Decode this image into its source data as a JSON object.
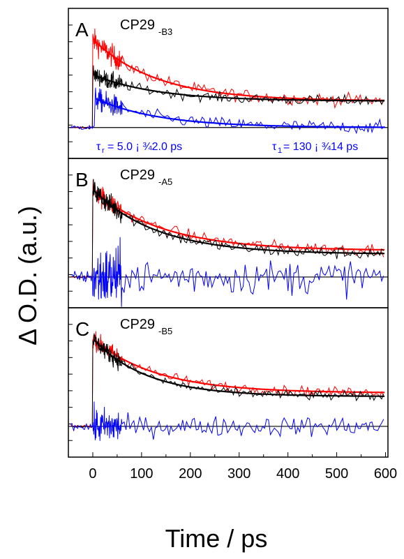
{
  "chart_data": {
    "type": "line",
    "xlabel": "Time / ps",
    "ylabel": "Δ O.D. (a.u.)",
    "xlim": [
      -50,
      605
    ],
    "xticks": [
      0,
      100,
      200,
      300,
      400,
      500,
      600
    ],
    "colors": {
      "red": "#ff0000",
      "black": "#000000",
      "blue": "#0000ff"
    },
    "panels": [
      {
        "letter": "A",
        "label_main": "CP29",
        "label_sub": "-B3",
        "annotations": [
          {
            "symbol": "τ",
            "sub": "r",
            "text": "= 5.0 ¡  ¾2.0 ps"
          },
          {
            "symbol": "τ",
            "sub": "1",
            "text": "= 130 ¡  ¾14 ps"
          }
        ],
        "ylim": [
          -0.35,
          1.35
        ],
        "series": [
          {
            "color": "red",
            "peak": 1.0,
            "t0": 0,
            "tau": 130,
            "offset": 0.3,
            "noise": 0.05,
            "start_noise": 0.01
          },
          {
            "color": "black",
            "peak": 0.6,
            "t0": 0,
            "tau": 130,
            "offset": 0.3,
            "noise": 0.04,
            "start_noise": 0.01
          },
          {
            "color": "blue",
            "peak": 0.33,
            "t0": 5,
            "tau": 130,
            "offset": 0.0,
            "noise": 0.05,
            "start_noise": 0.02
          }
        ]
      },
      {
        "letter": "B",
        "label_main": "CP29",
        "label_sub": "-A5",
        "annotations": [],
        "ylim": [
          -0.35,
          1.35
        ],
        "series": [
          {
            "color": "red",
            "peak": 1.0,
            "t0": 0,
            "tau": 140,
            "offset": 0.3,
            "noise": 0.05,
            "start_noise": 0.01
          },
          {
            "color": "black",
            "peak": 1.0,
            "t0": 0,
            "tau": 130,
            "offset": 0.26,
            "noise": 0.05,
            "start_noise": 0.01
          },
          {
            "color": "blue",
            "peak": 0.0,
            "t0": 0,
            "tau": 100,
            "offset": 0.0,
            "noise": 0.14,
            "start_noise": 0.05
          }
        ]
      },
      {
        "letter": "C",
        "label_main": "CP29",
        "label_sub": "-B5",
        "annotations": [],
        "ylim": [
          -0.35,
          1.35
        ],
        "series": [
          {
            "color": "red",
            "peak": 1.0,
            "t0": 0,
            "tau": 130,
            "offset": 0.38,
            "noise": 0.04,
            "start_noise": 0.01
          },
          {
            "color": "black",
            "peak": 1.0,
            "t0": 0,
            "tau": 110,
            "offset": 0.34,
            "noise": 0.04,
            "start_noise": 0.01
          },
          {
            "color": "blue",
            "peak": 0.0,
            "t0": 0,
            "tau": 100,
            "offset": 0.0,
            "noise": 0.08,
            "start_noise": 0.03
          }
        ]
      }
    ]
  }
}
